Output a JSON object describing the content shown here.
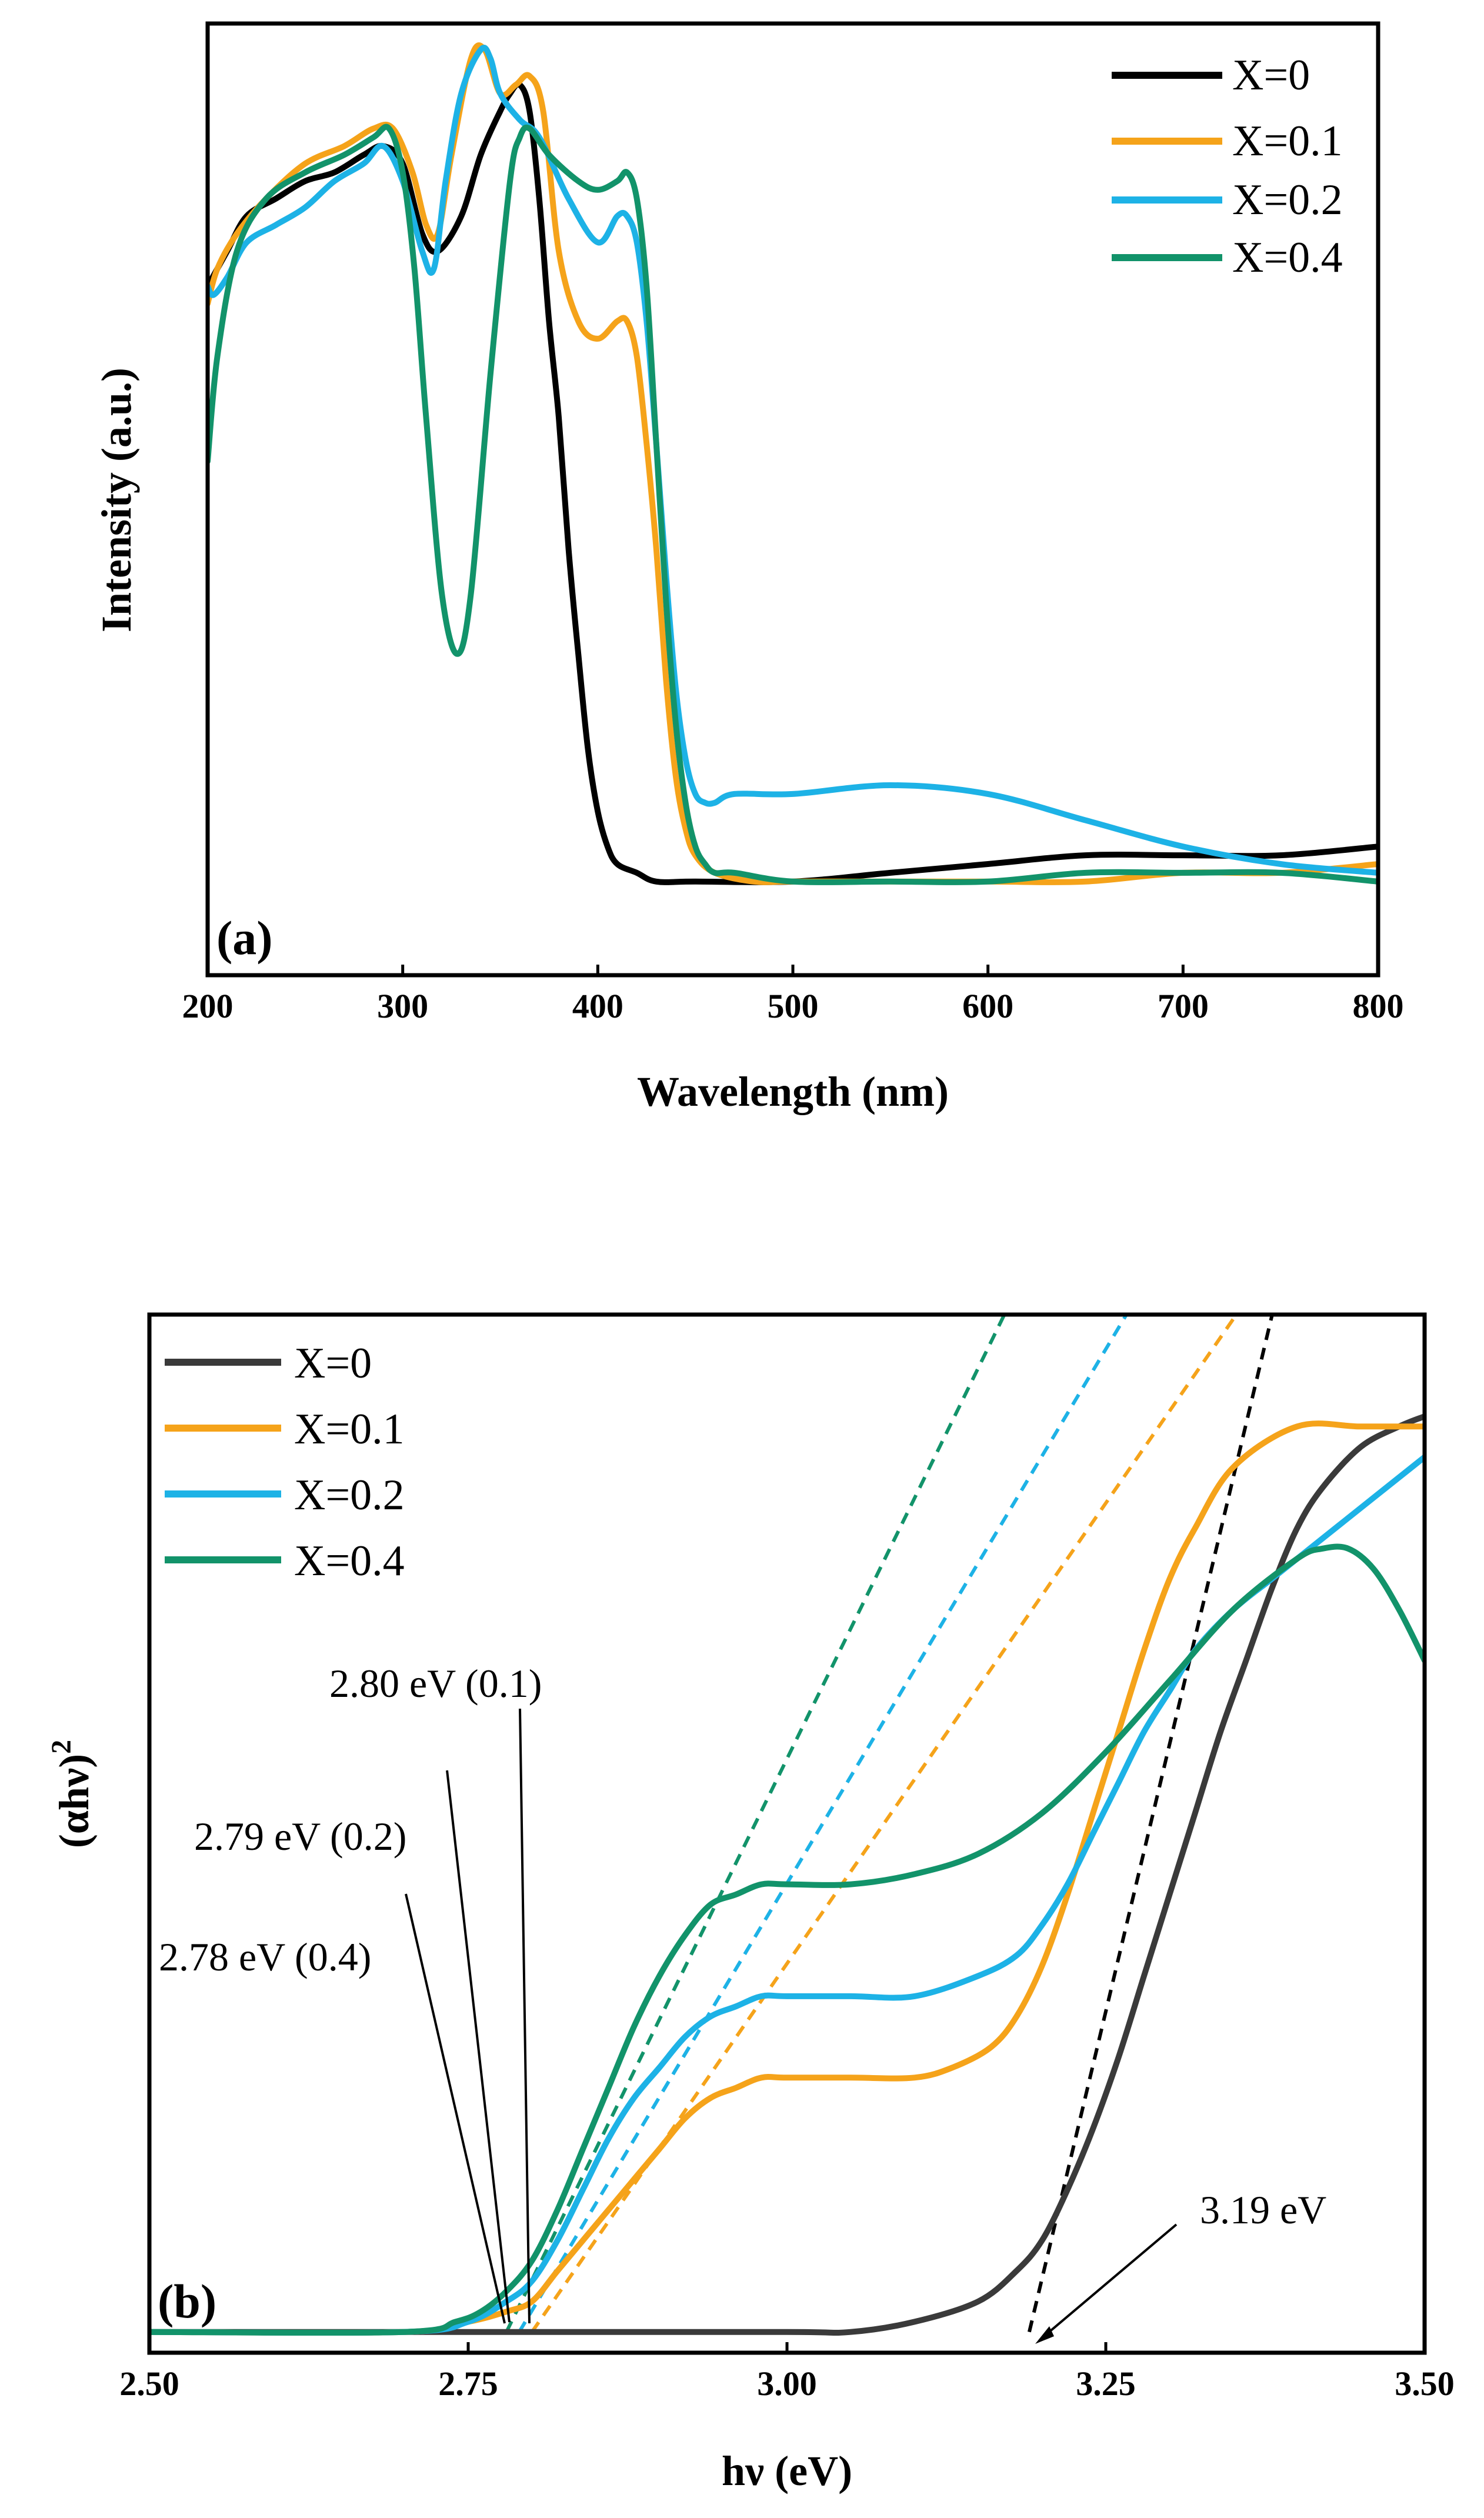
{
  "chart_data": [
    {
      "type": "line",
      "panel_label": "(a)",
      "xlabel": "Wavelength (nm)",
      "ylabel": "Intensity (a.u.)",
      "xlim": [
        200,
        800
      ],
      "ylim": [
        0,
        1
      ],
      "xticks": [
        "200",
        "300",
        "400",
        "500",
        "600",
        "700",
        "800"
      ],
      "grid": false,
      "legend_position": "top-right",
      "series": [
        {
          "name": "X=0",
          "color": "#000000",
          "x": [
            200,
            210,
            220,
            235,
            250,
            265,
            280,
            290,
            300,
            310,
            318,
            330,
            340,
            350,
            355,
            360,
            365,
            370,
            375,
            380,
            385,
            390,
            395,
            400,
            405,
            410,
            420,
            430,
            450,
            500,
            550,
            600,
            650,
            700,
            750,
            800
          ],
          "y": [
            0.7,
            0.74,
            0.78,
            0.8,
            0.82,
            0.83,
            0.85,
            0.86,
            0.84,
            0.76,
            0.74,
            0.78,
            0.85,
            0.9,
            0.92,
            0.93,
            0.9,
            0.8,
            0.66,
            0.55,
            0.4,
            0.28,
            0.17,
            0.1,
            0.06,
            0.04,
            0.03,
            0.02,
            0.02,
            0.02,
            0.03,
            0.04,
            0.05,
            0.05,
            0.05,
            0.06
          ]
        },
        {
          "name": "X=0.1",
          "color": "#F5A31A",
          "x": [
            200,
            205,
            215,
            230,
            250,
            270,
            285,
            295,
            305,
            312,
            318,
            325,
            335,
            342,
            350,
            358,
            365,
            372,
            380,
            390,
            400,
            410,
            415,
            420,
            425,
            430,
            435,
            440,
            445,
            450,
            460,
            480,
            500,
            550,
            600,
            650,
            700,
            750,
            800
          ],
          "y": [
            0.68,
            0.72,
            0.76,
            0.8,
            0.84,
            0.86,
            0.88,
            0.88,
            0.83,
            0.77,
            0.76,
            0.85,
            0.96,
            0.97,
            0.92,
            0.93,
            0.94,
            0.9,
            0.74,
            0.66,
            0.64,
            0.66,
            0.66,
            0.62,
            0.52,
            0.4,
            0.25,
            0.14,
            0.08,
            0.05,
            0.03,
            0.02,
            0.02,
            0.02,
            0.02,
            0.02,
            0.03,
            0.03,
            0.04
          ]
        },
        {
          "name": "X=0.2",
          "color": "#1DB2E6",
          "x": [
            200,
            203,
            210,
            220,
            235,
            250,
            265,
            280,
            290,
            300,
            310,
            316,
            322,
            330,
            340,
            345,
            350,
            360,
            370,
            385,
            400,
            410,
            415,
            420,
            425,
            430,
            435,
            440,
            445,
            450,
            455,
            460,
            470,
            500,
            550,
            600,
            650,
            700,
            750,
            800
          ],
          "y": [
            0.7,
            0.69,
            0.71,
            0.75,
            0.77,
            0.79,
            0.82,
            0.84,
            0.86,
            0.82,
            0.74,
            0.72,
            0.82,
            0.92,
            0.97,
            0.96,
            0.92,
            0.89,
            0.87,
            0.8,
            0.75,
            0.78,
            0.78,
            0.75,
            0.66,
            0.52,
            0.37,
            0.24,
            0.16,
            0.12,
            0.11,
            0.11,
            0.12,
            0.12,
            0.13,
            0.12,
            0.09,
            0.06,
            0.04,
            0.03
          ]
        },
        {
          "name": "X=0.4",
          "color": "#12936A",
          "x": [
            200,
            205,
            215,
            230,
            250,
            270,
            285,
            293,
            300,
            306,
            312,
            320,
            328,
            335,
            345,
            355,
            360,
            365,
            375,
            390,
            400,
            410,
            415,
            420,
            425,
            430,
            435,
            440,
            445,
            450,
            455,
            460,
            470,
            500,
            550,
            600,
            650,
            700,
            750,
            800
          ],
          "y": [
            0.5,
            0.62,
            0.74,
            0.8,
            0.83,
            0.85,
            0.87,
            0.88,
            0.83,
            0.72,
            0.55,
            0.35,
            0.28,
            0.35,
            0.6,
            0.82,
            0.87,
            0.88,
            0.85,
            0.82,
            0.81,
            0.82,
            0.83,
            0.8,
            0.7,
            0.52,
            0.34,
            0.2,
            0.11,
            0.06,
            0.04,
            0.03,
            0.03,
            0.02,
            0.02,
            0.02,
            0.03,
            0.03,
            0.03,
            0.02
          ]
        }
      ]
    },
    {
      "type": "line",
      "panel_label": "(b)",
      "xlabel": "hν (eV)",
      "ylabel": "(αhν)²",
      "ylabel_base": "(αhν)",
      "ylabel_exp": "2",
      "xlim": [
        2.5,
        3.5
      ],
      "ylim": [
        0,
        1
      ],
      "xticks": [
        "2.50",
        "2.75",
        "3.00",
        "3.25",
        "3.50"
      ],
      "grid": false,
      "legend_position": "top-left",
      "series": [
        {
          "name": "X=0",
          "color": "#3A3A3A",
          "x": [
            2.5,
            2.8,
            3.0,
            3.05,
            3.1,
            3.15,
            3.18,
            3.2,
            3.22,
            3.24,
            3.26,
            3.28,
            3.3,
            3.32,
            3.34,
            3.36,
            3.38,
            3.4,
            3.42,
            3.45,
            3.48,
            3.5
          ],
          "y": [
            0.0,
            0.0,
            0.0,
            0.0,
            0.01,
            0.03,
            0.06,
            0.09,
            0.14,
            0.2,
            0.27,
            0.35,
            0.43,
            0.51,
            0.59,
            0.66,
            0.73,
            0.79,
            0.83,
            0.87,
            0.89,
            0.9
          ]
        },
        {
          "name": "X=0.1",
          "color": "#F5A31A",
          "x": [
            2.5,
            2.7,
            2.75,
            2.78,
            2.8,
            2.82,
            2.84,
            2.86,
            2.88,
            2.9,
            2.92,
            2.94,
            2.96,
            2.98,
            3.0,
            3.05,
            3.1,
            3.13,
            3.16,
            3.18,
            3.2,
            3.22,
            3.24,
            3.26,
            3.28,
            3.3,
            3.32,
            3.35,
            3.4,
            3.45,
            3.5
          ],
          "y": [
            0.0,
            0.0,
            0.01,
            0.02,
            0.03,
            0.06,
            0.09,
            0.12,
            0.15,
            0.18,
            0.21,
            0.23,
            0.24,
            0.25,
            0.25,
            0.25,
            0.25,
            0.26,
            0.28,
            0.31,
            0.36,
            0.43,
            0.51,
            0.59,
            0.67,
            0.74,
            0.79,
            0.85,
            0.89,
            0.89,
            0.89
          ]
        },
        {
          "name": "X=0.2",
          "color": "#1DB2E6",
          "x": [
            2.5,
            2.7,
            2.75,
            2.78,
            2.8,
            2.82,
            2.84,
            2.86,
            2.88,
            2.9,
            2.92,
            2.94,
            2.96,
            2.98,
            3.0,
            3.05,
            3.1,
            3.15,
            3.18,
            3.2,
            3.22,
            3.24,
            3.26,
            3.28,
            3.3,
            3.32,
            3.35,
            3.38,
            3.4,
            3.45,
            3.5
          ],
          "y": [
            0.0,
            0.0,
            0.01,
            0.03,
            0.05,
            0.09,
            0.14,
            0.19,
            0.23,
            0.26,
            0.29,
            0.31,
            0.32,
            0.33,
            0.33,
            0.33,
            0.33,
            0.35,
            0.37,
            0.4,
            0.44,
            0.49,
            0.54,
            0.59,
            0.63,
            0.67,
            0.71,
            0.74,
            0.76,
            0.81,
            0.86
          ]
        },
        {
          "name": "X=0.4",
          "color": "#12936A",
          "x": [
            2.5,
            2.7,
            2.74,
            2.76,
            2.78,
            2.8,
            2.82,
            2.84,
            2.86,
            2.88,
            2.9,
            2.92,
            2.94,
            2.96,
            2.98,
            3.0,
            3.05,
            3.1,
            3.15,
            3.2,
            3.25,
            3.3,
            3.35,
            3.4,
            3.42,
            3.44,
            3.46,
            3.48,
            3.5
          ],
          "y": [
            0.0,
            0.0,
            0.01,
            0.02,
            0.04,
            0.07,
            0.12,
            0.18,
            0.24,
            0.3,
            0.35,
            0.39,
            0.42,
            0.43,
            0.44,
            0.44,
            0.44,
            0.45,
            0.47,
            0.51,
            0.57,
            0.64,
            0.71,
            0.76,
            0.77,
            0.77,
            0.75,
            0.71,
            0.66
          ]
        }
      ],
      "fits": [
        {
          "color": "#12936A",
          "x": [
            2.78,
            3.19
          ],
          "y": [
            0.0,
            1.05
          ]
        },
        {
          "color": "#1DB2E6",
          "x": [
            2.79,
            3.29
          ],
          "y": [
            0.0,
            1.05
          ]
        },
        {
          "color": "#F5A31A",
          "x": [
            2.8,
            3.38
          ],
          "y": [
            0.0,
            1.05
          ]
        },
        {
          "color": "#000000",
          "x": [
            3.19,
            3.39
          ],
          "y": [
            0.0,
            1.05
          ]
        }
      ],
      "annotations": [
        {
          "text": "2.80 eV (0.1)",
          "x": 2.8
        },
        {
          "text": "2.79 eV (0.2)",
          "x": 2.79
        },
        {
          "text": "2.78 eV (0.4)",
          "x": 2.78
        },
        {
          "text": "3.19 eV",
          "x": 3.19
        }
      ]
    }
  ]
}
